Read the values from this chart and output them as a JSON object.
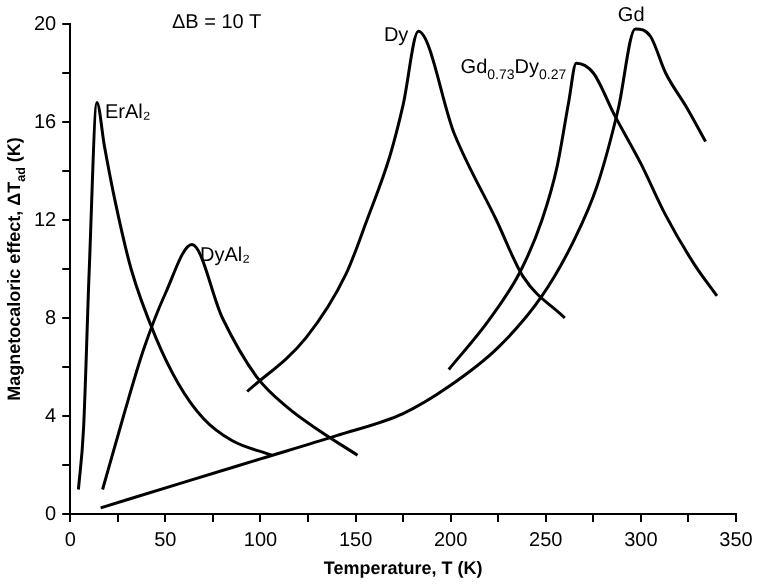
{
  "chart_data": {
    "type": "line",
    "xlabel": "Temperature, T (K)",
    "ylabel": "Magnetocaloric effect, ΔT$_{ad}$ (K)",
    "xlim": [
      0,
      350
    ],
    "xticks": [
      0,
      {
        "value": 25,
        "label": null
      },
      50,
      {
        "value": 75,
        "label": null
      },
      100,
      {
        "value": 125,
        "label": null
      },
      150,
      {
        "value": 175,
        "label": null
      },
      200,
      {
        "value": 225,
        "label": null
      },
      250,
      {
        "value": 275,
        "label": null
      },
      300,
      {
        "value": 325,
        "label": null
      },
      350
    ],
    "ylim": [
      0,
      20
    ],
    "yticks": [
      0,
      {
        "value": 2,
        "label": null
      },
      4,
      {
        "value": 6,
        "label": null
      },
      8,
      {
        "value": 10,
        "label": null
      },
      12,
      {
        "value": 14,
        "label": null
      },
      16,
      {
        "value": 18,
        "label": null
      },
      20
    ],
    "grid": false,
    "legend": false,
    "marker": "none",
    "line_style": "solid",
    "annotations": [
      "ΔB = 10 T"
    ],
    "series": [
      {
        "name": "ErAl₂",
        "color": "#000000",
        "x": [
          4.3,
          7,
          10,
          14,
          18,
          23.5,
          32,
          45,
          57,
          70,
          85,
          106
        ],
        "values": [
          1.0,
          3.5,
          10,
          16.8,
          15.0,
          12.8,
          10.0,
          7.2,
          5.3,
          3.9,
          3.0,
          2.4
        ]
      },
      {
        "name": "DyAl₂",
        "color": "#000000",
        "x": [
          17,
          28,
          38.5,
          50,
          64,
          80,
          98,
          115,
          131,
          151
        ],
        "values": [
          1.0,
          4.0,
          6.7,
          9.0,
          11.0,
          8.0,
          5.6,
          4.3,
          3.4,
          2.4
        ]
      },
      {
        "name": "Dy",
        "color": "#000000",
        "x": [
          93,
          124,
          145,
          156,
          168,
          175,
          183,
          202,
          224,
          238,
          260
        ],
        "values": [
          5.0,
          7.2,
          9.8,
          12.0,
          14.6,
          16.7,
          19.7,
          15.5,
          12.0,
          9.7,
          8.0
        ]
      },
      {
        "name": "Gd$_{0.73}$Dy$_{0.27}$",
        "color": "#000000",
        "x": [
          199,
          220,
          236.6,
          248,
          256,
          262,
          266,
          275,
          286,
          300,
          313,
          328,
          340
        ],
        "values": [
          5.9,
          7.9,
          9.9,
          12.0,
          14.2,
          16.8,
          18.4,
          18.0,
          16.3,
          14.3,
          12.2,
          10.2,
          8.9
        ]
      },
      {
        "name": "Gd",
        "color": "#000000",
        "x": [
          16,
          60,
          100,
          140,
          175,
          199,
          225,
          248,
          265,
          277,
          288,
          297,
          305,
          313,
          324,
          334
        ],
        "values": [
          0.25,
          1.3,
          2.25,
          3.2,
          4.1,
          5.2,
          6.8,
          8.9,
          11.2,
          13.4,
          16.5,
          19.8,
          19.5,
          18.0,
          16.6,
          15.2
        ]
      }
    ]
  }
}
